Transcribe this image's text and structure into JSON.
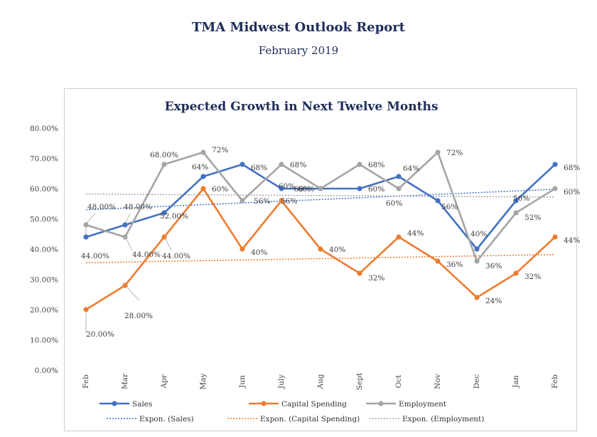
{
  "header": {
    "title": "TMA Midwest Outlook Report",
    "subtitle": "February 2019"
  },
  "chart_data": {
    "type": "line",
    "title": "Expected Growth in Next Twelve Months",
    "categories": [
      "Feb",
      "Mar",
      "Apr",
      "May",
      "Jun",
      "July",
      "Aug",
      "Sept",
      "Oct",
      "Nov",
      "Dec",
      "Jan",
      "Feb"
    ],
    "ylim": [
      0,
      80
    ],
    "y_ticks": [
      "0.00%",
      "10.00%",
      "20.00%",
      "30.00%",
      "40.00%",
      "50.00%",
      "60.00%",
      "70.00%",
      "80.00%"
    ],
    "grid": false,
    "legend_position": "bottom",
    "series": [
      {
        "name": "Sales",
        "color": "#4472c4",
        "values": [
          44,
          48,
          52,
          64,
          68,
          60,
          60,
          60,
          64,
          56,
          40,
          56,
          68
        ],
        "labels": [
          "44.00%",
          "48.00%",
          "52.00%",
          "64%",
          "68%",
          "60%",
          "60%",
          "60%",
          "64%",
          "56%",
          "40%",
          "56%",
          "68%"
        ]
      },
      {
        "name": "Capital Spending",
        "color": "#ed7d31",
        "values": [
          20,
          28,
          44,
          60,
          40,
          56,
          40,
          32,
          44,
          36,
          24,
          32,
          44
        ],
        "labels": [
          "20.00%",
          "28.00%",
          "44.00%",
          "60%",
          "40%",
          "56%",
          "40%",
          "32%",
          "44%",
          "36%",
          "24%",
          "32%",
          "44%"
        ]
      },
      {
        "name": "Employment",
        "color": "#a5a5a5",
        "values": [
          48,
          44,
          68,
          72,
          56,
          68,
          60,
          68,
          60,
          72,
          36,
          52,
          60
        ],
        "labels": [
          "48.00%",
          "44.00%",
          "68.00%",
          "72%",
          "56%",
          "68%",
          "60%",
          "68%",
          "60%",
          "72%",
          "36%",
          "52%",
          "60%"
        ]
      }
    ],
    "trendlines": [
      {
        "name": "Expon. (Sales)",
        "color": "#4472c4",
        "start": 53,
        "end": 59.8
      },
      {
        "name": "Expon. (Capital Spending)",
        "color": "#ed7d31",
        "start": 35.5,
        "end": 38.2
      },
      {
        "name": "Expon. (Employment)",
        "color": "#a5a5a5",
        "start": 58.2,
        "end": 57.2
      }
    ]
  }
}
